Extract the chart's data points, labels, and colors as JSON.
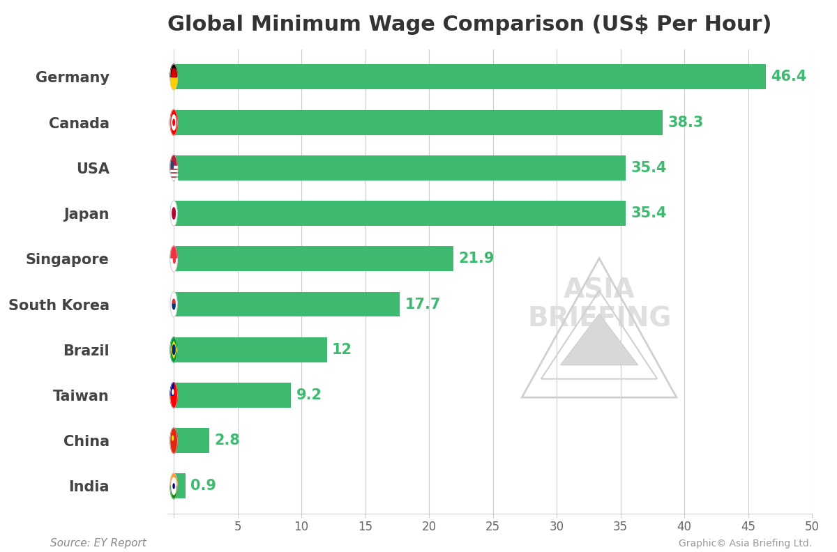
{
  "title": "Global Minimum Wage Comparison (US$ Per Hour)",
  "countries": [
    "Germany",
    "Canada",
    "USA",
    "Japan",
    "Singapore",
    "South Korea",
    "Brazil",
    "Taiwan",
    "China",
    "India"
  ],
  "values": [
    46.4,
    38.3,
    35.4,
    35.4,
    21.9,
    17.7,
    12,
    9.2,
    2.8,
    0.9
  ],
  "bar_color": "#3dba6f",
  "value_color": "#3dba6f",
  "background_color": "#ffffff",
  "title_fontsize": 22,
  "label_fontsize": 15,
  "value_fontsize": 15,
  "source_text": "Source: EY Report",
  "credit_text": "Graphic© Asia Briefing Ltd.",
  "xlim": [
    0,
    50
  ],
  "xticks": [
    0,
    5,
    10,
    15,
    20,
    25,
    30,
    35,
    40,
    45,
    50
  ],
  "bar_height": 0.55,
  "flag_colors": {
    "Germany": [
      "#000000",
      "#DD0000",
      "#FFCE00"
    ],
    "Canada": [
      "#FF0000",
      "#FFFFFF"
    ],
    "USA": [
      "#B22234",
      "#FFFFFF",
      "#3C3B6E"
    ],
    "Japan": [
      "#FFFFFF",
      "#BC002D"
    ],
    "Singapore": [
      "#EF3340",
      "#FFFFFF"
    ],
    "South Korea": [
      "#FFFFFF",
      "#003478",
      "#CD2E3A"
    ],
    "Brazil": [
      "#009C3B",
      "#FEDF00",
      "#002776"
    ],
    "Taiwan": [
      "#FE0000",
      "#FFFFFF",
      "#000095"
    ],
    "China": [
      "#DE2910",
      "#FFDE00"
    ],
    "India": [
      "#FF9933",
      "#FFFFFF",
      "#138808",
      "#000080"
    ]
  }
}
